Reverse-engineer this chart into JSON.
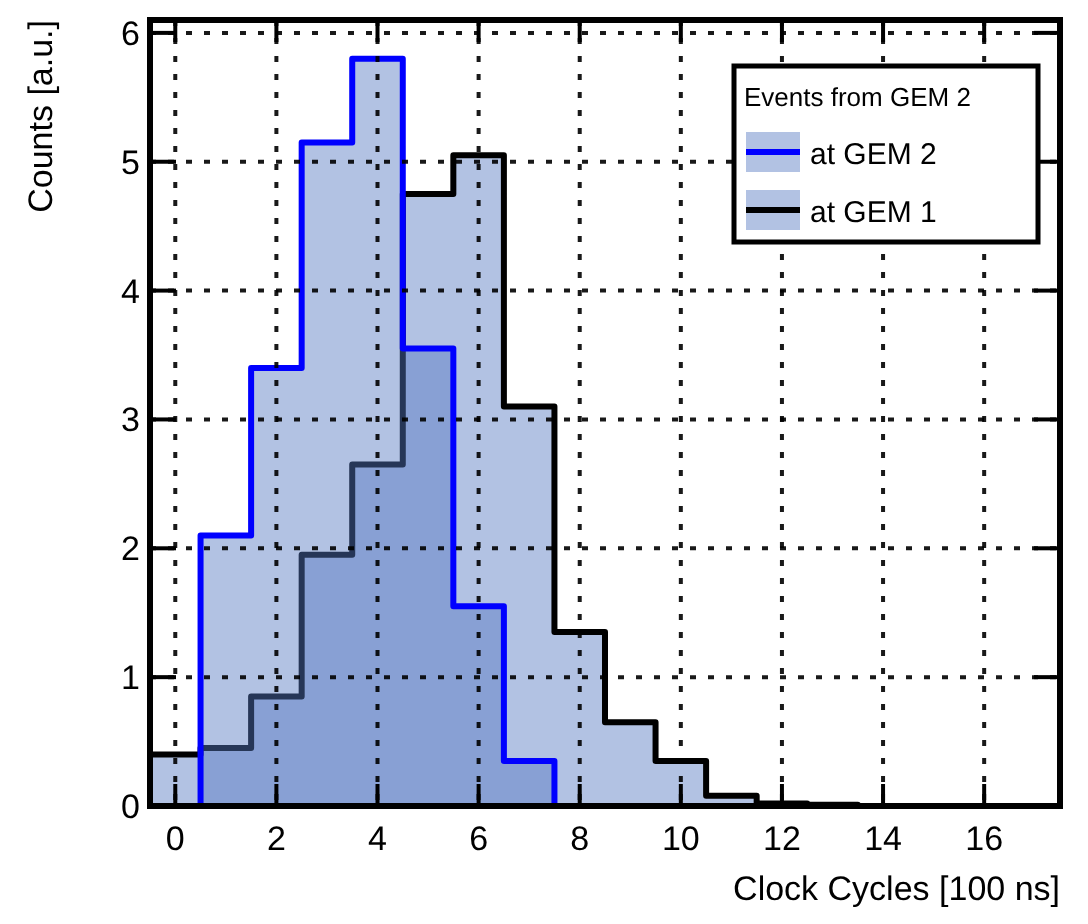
{
  "chart_data": {
    "type": "histogram",
    "xlabel": "Clock Cycles [100 ns]",
    "ylabel": "Counts [a.u.]",
    "legend_title": "Events from GEM 2",
    "bins": [
      -0.5,
      0.5,
      1.5,
      2.5,
      3.5,
      4.5,
      5.5,
      6.5,
      7.5,
      8.5,
      9.5,
      10.5,
      11.5,
      12.5,
      13.5,
      14.5,
      15.5,
      16.5,
      17.5
    ],
    "series": [
      {
        "name": "at GEM 2",
        "color": "#0000ff",
        "values": [
          0,
          2.1,
          3.4,
          5.15,
          5.8,
          3.55,
          1.55,
          0.35,
          0,
          0,
          0,
          0,
          0,
          0,
          0,
          0,
          0,
          0
        ]
      },
      {
        "name": "at GEM 1",
        "color": "#000000",
        "values": [
          0.4,
          0.45,
          0.85,
          1.95,
          2.65,
          4.75,
          5.05,
          3.1,
          1.35,
          0.65,
          0.35,
          0.08,
          0.02,
          0.01,
          0,
          0,
          0,
          0
        ]
      }
    ],
    "xlim": [
      -0.5,
      17.5
    ],
    "ylim": [
      0,
      6.1
    ],
    "xticks": [
      0,
      2,
      4,
      6,
      8,
      10,
      12,
      14,
      16
    ],
    "yticks": [
      0,
      1,
      2,
      3,
      4,
      5,
      6
    ],
    "grid": true,
    "legend": "top right"
  }
}
